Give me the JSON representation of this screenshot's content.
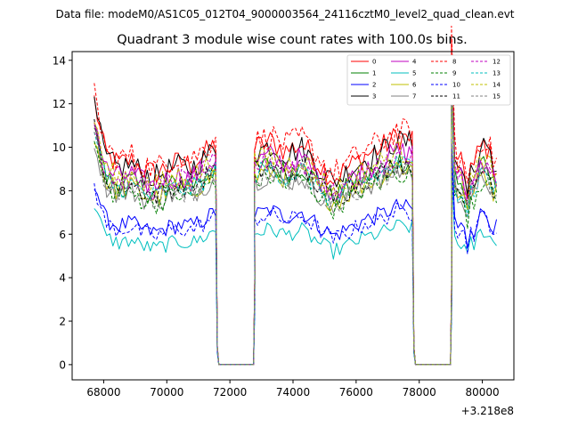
{
  "chart_data": {
    "type": "line",
    "suptitle": "Data file: modeM0/AS1C05_012T04_9000003564_24116cztM0_level2_quad_clean.evt",
    "title": "Quadrant 3 module wise count rates with 100.0s bins.",
    "xlabel": "",
    "ylabel": "",
    "x_offset_label": "+3.218e8",
    "xlim": [
      67000,
      81000
    ],
    "ylim": [
      -0.7,
      14.4
    ],
    "xticks": [
      68000,
      70000,
      72000,
      74000,
      76000,
      78000,
      80000
    ],
    "xtick_labels": [
      "68000",
      "70000",
      "72000",
      "74000",
      "76000",
      "78000",
      "80000"
    ],
    "yticks": [
      0,
      2,
      4,
      6,
      8,
      10,
      12,
      14
    ],
    "ytick_labels": [
      "0",
      "2",
      "4",
      "6",
      "8",
      "10",
      "12",
      "14"
    ],
    "legend_position": "top-right",
    "x_range": [
      67700,
      80450
    ],
    "bin_size": 100,
    "gaps": [
      [
        71550,
        72780
      ],
      [
        77780,
        79020
      ]
    ],
    "segments": [
      {
        "base": [
          9.5,
          9.0,
          8.6,
          8.8,
          8.4,
          8.2,
          8.5,
          8.7,
          8.6,
          9.0,
          9.5
        ],
        "recovery_peak": 1.2
      },
      {
        "base": [
          9.3,
          9.6,
          9.2,
          9.5,
          8.7,
          8.0,
          8.5,
          9.0,
          9.3,
          9.8,
          9.7
        ]
      },
      {
        "base": [
          8.5,
          8.2,
          8.5,
          8.6,
          8.3,
          7.5,
          8.6,
          8.4,
          9.0,
          9.3,
          9.5,
          9.3,
          9.0,
          8.6,
          8.5
        ],
        "recovery_peak": 1.3
      }
    ],
    "series": [
      {
        "name": "0",
        "color": "#ff0000",
        "dash": "solid",
        "scale": 1.07
      },
      {
        "name": "1",
        "color": "#008000",
        "dash": "solid",
        "scale": 0.96
      },
      {
        "name": "2",
        "color": "#0000ff",
        "dash": "solid",
        "scale": 0.74
      },
      {
        "name": "3",
        "color": "#000000",
        "dash": "solid",
        "scale": 1.05
      },
      {
        "name": "4",
        "color": "#c000c0",
        "dash": "solid",
        "scale": 1.0
      },
      {
        "name": "5",
        "color": "#00bfbf",
        "dash": "solid",
        "scale": 0.65
      },
      {
        "name": "6",
        "color": "#bfbf00",
        "dash": "solid",
        "scale": 0.93
      },
      {
        "name": "7",
        "color": "#808080",
        "dash": "solid",
        "scale": 0.91
      },
      {
        "name": "8",
        "color": "#ff0000",
        "dash": "dashed",
        "scale": 1.1
      },
      {
        "name": "9",
        "color": "#008000",
        "dash": "dashed",
        "scale": 0.9
      },
      {
        "name": "10",
        "color": "#0000ff",
        "dash": "dashed",
        "scale": 0.72
      },
      {
        "name": "11",
        "color": "#000000",
        "dash": "dashed",
        "scale": 0.95
      },
      {
        "name": "12",
        "color": "#c000c0",
        "dash": "dashed",
        "scale": 0.98
      },
      {
        "name": "13",
        "color": "#00bfbf",
        "dash": "dashed",
        "scale": 0.94
      },
      {
        "name": "14",
        "color": "#bfbf00",
        "dash": "dashed",
        "scale": 1.0
      },
      {
        "name": "15",
        "color": "#808080",
        "dash": "dashed",
        "scale": 0.92
      }
    ]
  }
}
